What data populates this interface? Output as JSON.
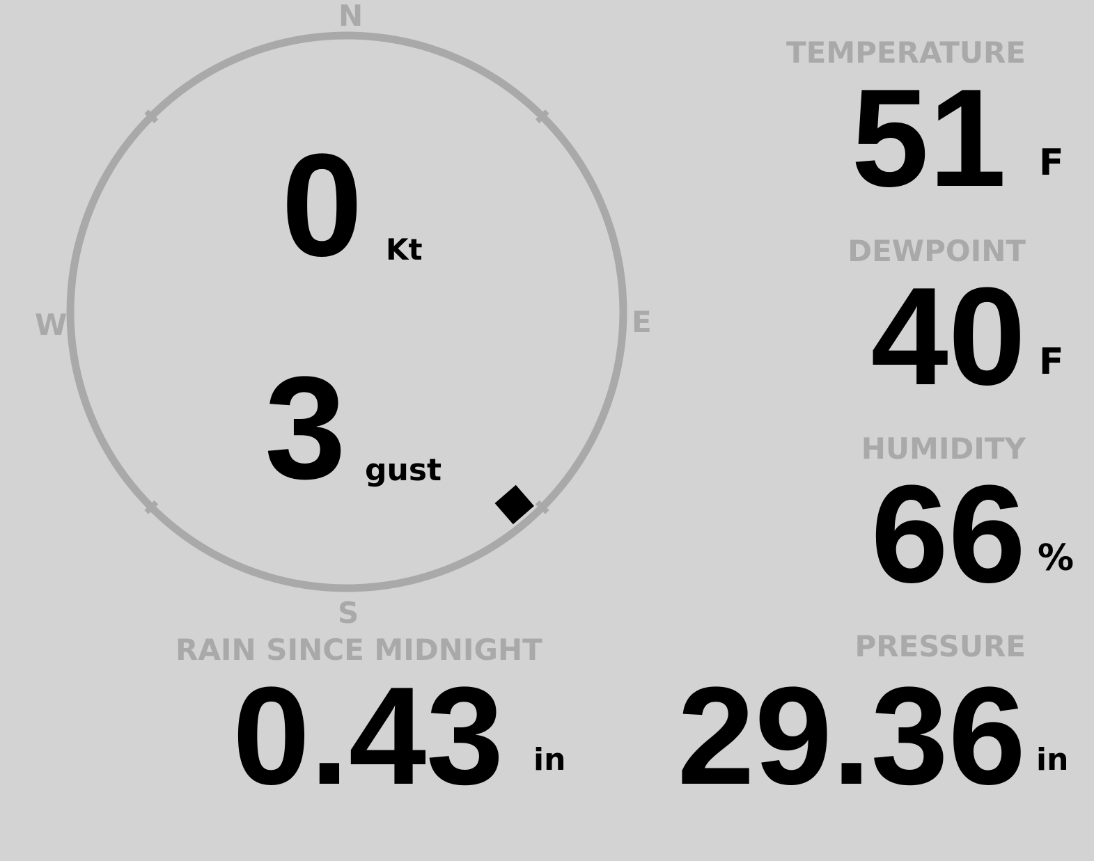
{
  "colors": {
    "background": "#d3d3d3",
    "muted": "#a9a9a9",
    "value": "#000000"
  },
  "compass": {
    "north": "N",
    "east": "E",
    "south": "S",
    "west": "W",
    "wind_direction_deg": 139
  },
  "wind": {
    "speed": "0",
    "speed_unit": "Kt",
    "gust": "3",
    "gust_unit": "gust"
  },
  "temperature": {
    "label": "TEMPERATURE",
    "value": "51",
    "unit": "F"
  },
  "dewpoint": {
    "label": "DEWPOINT",
    "value": "40",
    "unit": "F"
  },
  "humidity": {
    "label": "HUMIDITY",
    "value": "66",
    "unit": "%"
  },
  "rain": {
    "label": "RAIN SINCE MIDNIGHT",
    "value": "0.43",
    "unit": "in"
  },
  "pressure": {
    "label": "PRESSURE",
    "value": "29.36",
    "unit": "in"
  }
}
